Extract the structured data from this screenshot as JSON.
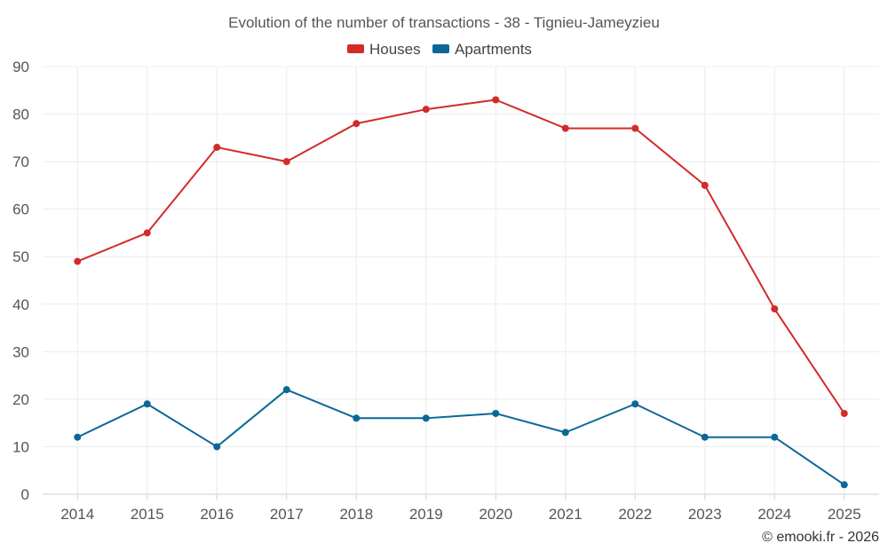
{
  "chart_data": {
    "type": "line",
    "title": "Evolution of the number of transactions - 38 - Tignieu-Jameyzieu",
    "categories": [
      "2014",
      "2015",
      "2016",
      "2017",
      "2018",
      "2019",
      "2020",
      "2021",
      "2022",
      "2023",
      "2024",
      "2025"
    ],
    "series": [
      {
        "name": "Houses",
        "color": "#d32a2a",
        "values": [
          49,
          55,
          73,
          70,
          78,
          81,
          83,
          77,
          77,
          65,
          39,
          17
        ]
      },
      {
        "name": "Apartments",
        "color": "#0a6798",
        "values": [
          12,
          19,
          10,
          22,
          16,
          16,
          17,
          13,
          19,
          12,
          12,
          2
        ]
      }
    ],
    "ylim": [
      0,
      90
    ],
    "yticks": [
      0,
      10,
      20,
      30,
      40,
      50,
      60,
      70,
      80,
      90
    ],
    "xlabel": "",
    "ylabel": "",
    "grid": true,
    "legend": "top-center",
    "credit": "© emooki.fr - 2026"
  }
}
